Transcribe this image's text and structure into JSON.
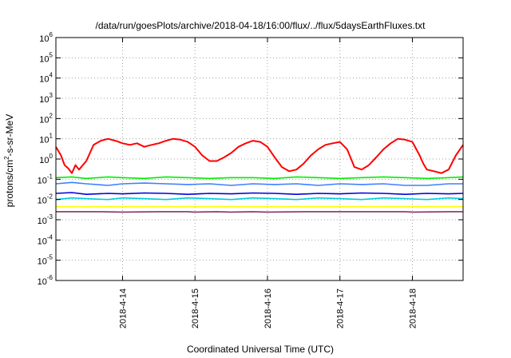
{
  "chart_data": {
    "type": "line",
    "title": "/data/run/goesPlots/archive/2018-04-18/16:00/flux/../flux/5daysEarthFluxes.txt",
    "xlabel": "Coordinated Universal Time (UTC)",
    "ylabel": {
      "base": "protons/cm",
      "exp": "2",
      "rest": "-s-sr-MeV"
    },
    "y_scale": "log",
    "ylim": [
      1e-06,
      1000000.0
    ],
    "y_ticks": [
      {
        "base": "10",
        "exp": "-6",
        "value": 1e-06
      },
      {
        "base": "10",
        "exp": "-5",
        "value": 1e-05
      },
      {
        "base": "10",
        "exp": "-4",
        "value": 0.0001
      },
      {
        "base": "10",
        "exp": "-3",
        "value": 0.001
      },
      {
        "base": "10",
        "exp": "-2",
        "value": 0.01
      },
      {
        "base": "10",
        "exp": "-1",
        "value": 0.1
      },
      {
        "base": "10",
        "exp": "0",
        "value": 1.0
      },
      {
        "base": "10",
        "exp": "1",
        "value": 10.0
      },
      {
        "base": "10",
        "exp": "2",
        "value": 100.0
      },
      {
        "base": "10",
        "exp": "3",
        "value": 1000.0
      },
      {
        "base": "10",
        "exp": "4",
        "value": 10000.0
      },
      {
        "base": "10",
        "exp": "5",
        "value": 100000.0
      },
      {
        "base": "10",
        "exp": "6",
        "value": 1000000.0
      }
    ],
    "x_range_days": [
      13.08,
      18.7
    ],
    "x_ticks": [
      {
        "label": "2018-4-14",
        "value": 14
      },
      {
        "label": "2018-4-15",
        "value": 15
      },
      {
        "label": "2018-4-16",
        "value": 16
      },
      {
        "label": "2018-4-17",
        "value": 17
      },
      {
        "label": "2018-4-18",
        "value": 18
      }
    ],
    "grid": true,
    "series": [
      {
        "color": "#ff0000",
        "x": [
          13.08,
          13.15,
          13.2,
          13.25,
          13.3,
          13.35,
          13.4,
          13.5,
          13.6,
          13.7,
          13.8,
          13.9,
          14.0,
          14.1,
          14.2,
          14.3,
          14.4,
          14.5,
          14.6,
          14.7,
          14.8,
          14.9,
          15.0,
          15.1,
          15.2,
          15.3,
          15.4,
          15.5,
          15.6,
          15.7,
          15.8,
          15.9,
          16.0,
          16.1,
          16.2,
          16.3,
          16.4,
          16.5,
          16.6,
          16.7,
          16.8,
          16.9,
          17.0,
          17.1,
          17.2,
          17.3,
          17.4,
          17.5,
          17.6,
          17.7,
          17.8,
          17.9,
          18.0,
          18.1,
          18.15,
          18.2,
          18.3,
          18.4,
          18.5,
          18.6,
          18.7
        ],
        "y": [
          4,
          1.5,
          0.5,
          0.35,
          0.2,
          0.5,
          0.3,
          0.8,
          5,
          8,
          10,
          8,
          6,
          5,
          6,
          4,
          5,
          6,
          8,
          10,
          9,
          7,
          4,
          1.5,
          0.8,
          0.8,
          1.2,
          2,
          4,
          6,
          8,
          7,
          4,
          1.2,
          0.4,
          0.25,
          0.3,
          0.6,
          1.5,
          3,
          5,
          6,
          7,
          3,
          0.4,
          0.3,
          0.5,
          1.2,
          3,
          6,
          10,
          9,
          7,
          1.5,
          0.6,
          0.3,
          0.25,
          0.2,
          0.3,
          1.5,
          5
        ]
      },
      {
        "color": "#00ee00",
        "x": [
          13.08,
          13.3,
          13.5,
          13.8,
          14.0,
          14.3,
          14.6,
          14.9,
          15.2,
          15.5,
          15.8,
          16.1,
          16.4,
          16.7,
          17.0,
          17.3,
          17.6,
          17.9,
          18.2,
          18.5,
          18.7
        ],
        "y": [
          0.12,
          0.13,
          0.11,
          0.13,
          0.12,
          0.11,
          0.13,
          0.12,
          0.11,
          0.12,
          0.12,
          0.11,
          0.13,
          0.12,
          0.11,
          0.12,
          0.13,
          0.12,
          0.11,
          0.12,
          0.13
        ]
      },
      {
        "color": "#3f7fff",
        "x": [
          13.08,
          13.3,
          13.5,
          13.8,
          14.0,
          14.3,
          14.6,
          14.9,
          15.2,
          15.5,
          15.8,
          16.1,
          16.4,
          16.7,
          17.0,
          17.3,
          17.6,
          17.9,
          18.2,
          18.5,
          18.7
        ],
        "y": [
          0.06,
          0.07,
          0.06,
          0.05,
          0.06,
          0.065,
          0.06,
          0.055,
          0.06,
          0.05,
          0.06,
          0.055,
          0.06,
          0.05,
          0.06,
          0.055,
          0.06,
          0.05,
          0.05,
          0.06,
          0.06
        ]
      },
      {
        "color": "#00ccdd",
        "x": [
          13.08,
          13.3,
          13.5,
          13.8,
          14.0,
          14.3,
          14.6,
          14.9,
          15.2,
          15.5,
          15.8,
          16.1,
          16.4,
          16.7,
          17.0,
          17.3,
          17.6,
          17.9,
          18.2,
          18.5,
          18.7
        ],
        "y": [
          0.01,
          0.012,
          0.011,
          0.01,
          0.012,
          0.011,
          0.01,
          0.012,
          0.011,
          0.01,
          0.012,
          0.011,
          0.01,
          0.012,
          0.011,
          0.01,
          0.012,
          0.011,
          0.01,
          0.012,
          0.011
        ]
      },
      {
        "color": "#0000dd",
        "x": [
          13.08,
          13.3,
          13.5,
          13.8,
          14.0,
          14.3,
          14.6,
          14.9,
          15.2,
          15.5,
          15.8,
          16.1,
          16.4,
          16.7,
          17.0,
          17.3,
          17.6,
          17.9,
          18.2,
          18.5,
          18.7
        ],
        "y": [
          0.02,
          0.022,
          0.018,
          0.02,
          0.019,
          0.021,
          0.02,
          0.018,
          0.02,
          0.019,
          0.021,
          0.02,
          0.018,
          0.02,
          0.019,
          0.021,
          0.02,
          0.018,
          0.02,
          0.019,
          0.02
        ]
      },
      {
        "color": "#ffff00",
        "x": [
          13.08,
          13.5,
          14.0,
          14.5,
          15.0,
          15.5,
          16.0,
          16.5,
          17.0,
          17.5,
          18.0,
          18.5,
          18.7
        ],
        "y": [
          0.0045,
          0.0045,
          0.0045,
          0.0045,
          0.0045,
          0.0045,
          0.0045,
          0.0045,
          0.0045,
          0.0045,
          0.0045,
          0.0045,
          0.0045
        ]
      },
      {
        "color": "#883366",
        "x": [
          13.08,
          13.5,
          13.7,
          14.0,
          14.5,
          14.9,
          15.0,
          15.3,
          15.5,
          15.8,
          16.0,
          16.5,
          17.0,
          17.5,
          17.9,
          18.0,
          18.5,
          18.7
        ],
        "y": [
          0.0025,
          0.0025,
          0.0025,
          0.0024,
          0.0025,
          0.0025,
          0.0024,
          0.0025,
          0.0024,
          0.0025,
          0.0024,
          0.0025,
          0.0025,
          0.0025,
          0.0025,
          0.0024,
          0.0025,
          0.0025
        ]
      }
    ]
  }
}
